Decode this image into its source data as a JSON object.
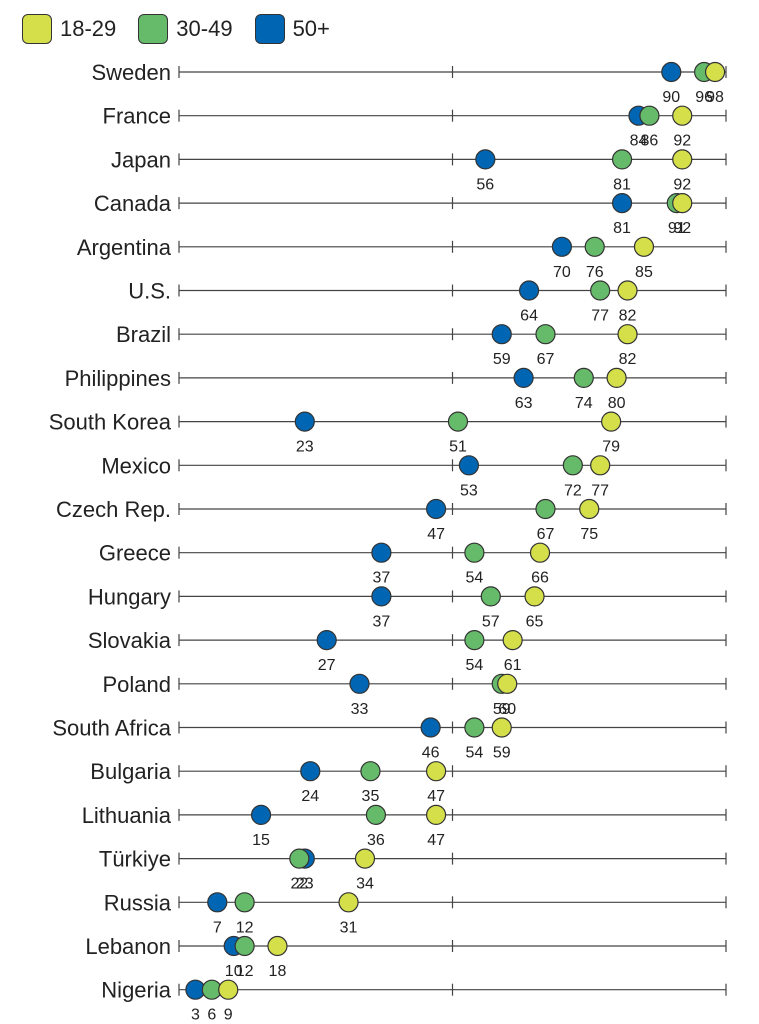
{
  "chart_data": {
    "type": "scatter",
    "subtype": "dot-plot",
    "title": "",
    "xlabel": "",
    "ylabel": "",
    "xlim": [
      0,
      100
    ],
    "x_ticks": [
      0,
      50,
      100
    ],
    "grid": false,
    "legend_placement": "top-left",
    "categories": [
      "Sweden",
      "France",
      "Japan",
      "Canada",
      "Argentina",
      "U.S.",
      "Brazil",
      "Philippines",
      "South Korea",
      "Mexico",
      "Czech Rep.",
      "Greece",
      "Hungary",
      "Slovakia",
      "Poland",
      "South Africa",
      "Bulgaria",
      "Lithuania",
      "Türkiye",
      "Russia",
      "Lebanon",
      "Nigeria"
    ],
    "series": [
      {
        "name": "50+",
        "color": "#0066b3",
        "values": [
          90,
          84,
          56,
          81,
          70,
          64,
          59,
          63,
          23,
          53,
          47,
          37,
          37,
          27,
          33,
          46,
          24,
          15,
          23,
          7,
          10,
          3
        ]
      },
      {
        "name": "30-49",
        "color": "#66bb6a",
        "values": [
          96,
          86,
          81,
          91,
          76,
          77,
          67,
          74,
          51,
          72,
          67,
          54,
          57,
          54,
          59,
          54,
          35,
          36,
          22,
          12,
          12,
          6
        ]
      },
      {
        "name": "18-29",
        "color": "#d4df4a",
        "values": [
          98,
          92,
          92,
          92,
          85,
          82,
          82,
          80,
          79,
          77,
          75,
          66,
          65,
          61,
          60,
          59,
          47,
          47,
          34,
          31,
          18,
          9
        ]
      }
    ]
  }
}
